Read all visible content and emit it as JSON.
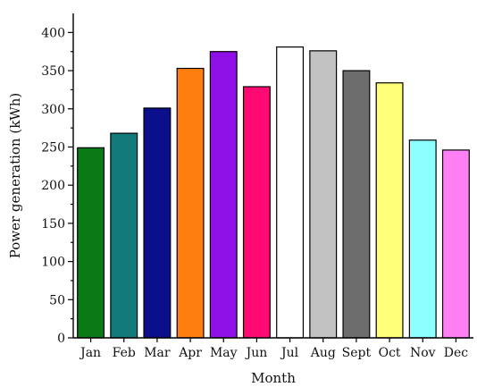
{
  "chart_data": {
    "type": "bar",
    "xlabel": "Month",
    "ylabel": "Power generation (kWh)",
    "ylim": [
      0,
      425
    ],
    "yticks": [
      0,
      50,
      100,
      150,
      200,
      250,
      300,
      350,
      400
    ],
    "grid": false,
    "categories": [
      "Jan",
      "Feb",
      "Mar",
      "Apr",
      "May",
      "Jun",
      "Jul",
      "Aug",
      "Sept",
      "Oct",
      "Nov",
      "Dec"
    ],
    "values": [
      249,
      268,
      301,
      353,
      375,
      329,
      381,
      376,
      350,
      334,
      259,
      246
    ],
    "colors": [
      "#0a7a16",
      "#117a7a",
      "#0a0f8c",
      "#ff7f0e",
      "#8e10e6",
      "#ff0a73",
      "#ffffff",
      "#c2c2c2",
      "#6d6d6d",
      "#ffff7a",
      "#8cffff",
      "#ff80f5"
    ]
  }
}
